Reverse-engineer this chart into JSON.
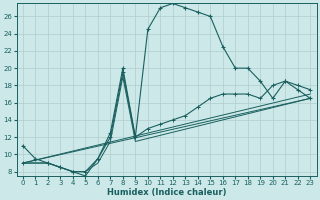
{
  "xlabel": "Humidex (Indice chaleur)",
  "bg_color": "#cce8e8",
  "grid_color": "#b0cccc",
  "line_color": "#1a5f5f",
  "xlim": [
    -0.5,
    23.5
  ],
  "ylim": [
    7.5,
    27.5
  ],
  "xticks": [
    0,
    1,
    2,
    3,
    4,
    5,
    6,
    7,
    8,
    9,
    10,
    11,
    12,
    13,
    14,
    15,
    16,
    17,
    18,
    19,
    20,
    21,
    22,
    23
  ],
  "yticks": [
    8,
    10,
    12,
    14,
    16,
    18,
    20,
    22,
    24,
    26
  ],
  "curve_x": [
    0,
    1,
    2,
    3,
    4,
    5,
    6,
    7,
    8,
    9,
    10,
    11,
    12,
    13,
    14,
    15,
    16,
    17,
    18,
    19,
    20,
    21,
    22,
    23
  ],
  "curve_y": [
    11,
    9.5,
    9.0,
    8.5,
    8.0,
    7.5,
    9.5,
    12.5,
    20.0,
    12.0,
    24.5,
    27.0,
    27.5,
    27.0,
    26.5,
    26.0,
    22.5,
    20.0,
    20.0,
    18.5,
    16.5,
    18.5,
    17.5,
    16.5
  ],
  "line1_x": [
    0,
    2,
    3,
    4,
    5,
    6,
    7,
    8,
    9,
    10,
    11,
    12,
    13,
    14,
    15,
    16,
    17,
    18,
    19,
    20,
    21,
    22,
    23
  ],
  "line1_y": [
    9.0,
    9.0,
    8.5,
    8.0,
    8.0,
    9.5,
    12.0,
    19.5,
    12.0,
    13.0,
    13.5,
    14.0,
    14.5,
    15.5,
    16.5,
    17.0,
    17.0,
    17.0,
    16.5,
    18.0,
    18.5,
    18.0,
    17.5
  ],
  "line2_x": [
    0,
    2,
    3,
    4,
    5,
    6,
    7,
    8,
    9,
    23
  ],
  "line2_y": [
    9.0,
    9.0,
    8.5,
    8.0,
    8.0,
    9.0,
    11.5,
    19.0,
    11.5,
    16.5
  ],
  "line3_x": [
    0,
    23
  ],
  "line3_y": [
    9.0,
    16.5
  ],
  "line4_x": [
    0,
    23
  ],
  "line4_y": [
    9.0,
    17.0
  ]
}
